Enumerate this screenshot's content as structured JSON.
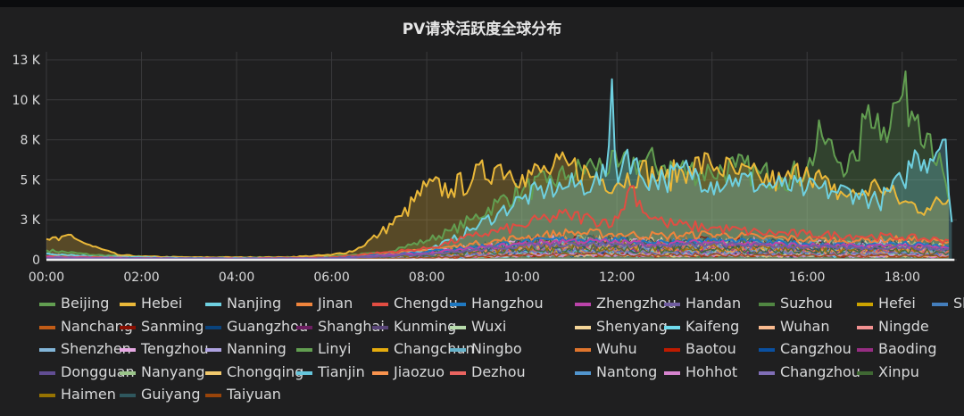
{
  "chart_data": {
    "type": "line",
    "title": "PV请求活跃度全球分布",
    "xlabel": "",
    "ylabel": "",
    "ylim": [
      0,
      13000
    ],
    "yticks": [
      {
        "value": 0,
        "label": "0"
      },
      {
        "value": 2500,
        "label": "3 K"
      },
      {
        "value": 5000,
        "label": "5 K"
      },
      {
        "value": 7500,
        "label": "8 K"
      },
      {
        "value": 10000,
        "label": "10 K"
      },
      {
        "value": 12500,
        "label": "13 K"
      }
    ],
    "xlim": [
      0,
      19.15
    ],
    "xticks": [
      {
        "value": 0,
        "label": "00:00"
      },
      {
        "value": 2,
        "label": "02:00"
      },
      {
        "value": 4,
        "label": "04:00"
      },
      {
        "value": 6,
        "label": "06:00"
      },
      {
        "value": 8,
        "label": "08:00"
      },
      {
        "value": 10,
        "label": "10:00"
      },
      {
        "value": 12,
        "label": "12:00"
      },
      {
        "value": 14,
        "label": "14:00"
      },
      {
        "value": 16,
        "label": "16:00"
      },
      {
        "value": 18,
        "label": "18:00"
      }
    ],
    "grid": true,
    "legend_position": "bottom",
    "series": [
      {
        "name": "Beijing",
        "color": "#629e51",
        "fill": true,
        "x": [
          0,
          1,
          2,
          3,
          4,
          5,
          6,
          7,
          7.5,
          8,
          8.5,
          9,
          9.5,
          10,
          10.5,
          11,
          11.5,
          12,
          12.5,
          13,
          13.5,
          14,
          14.5,
          15,
          15.5,
          16,
          16.3,
          16.6,
          17,
          17.3,
          17.6,
          18,
          18.3,
          18.6,
          19
        ],
        "y": [
          600,
          300,
          200,
          150,
          150,
          150,
          250,
          400,
          800,
          1200,
          1800,
          2600,
          3600,
          4300,
          4800,
          5300,
          5900,
          5800,
          6200,
          5900,
          5600,
          5500,
          5800,
          5400,
          5100,
          5600,
          7800,
          6400,
          5800,
          9800,
          8200,
          10300,
          9200,
          7800,
          3500
        ]
      },
      {
        "name": "Hebei",
        "color": "#eab839",
        "fill": true,
        "x": [
          0,
          0.25,
          0.5,
          0.75,
          1,
          1.5,
          2,
          3,
          4,
          5,
          6,
          6.5,
          7,
          7.5,
          8,
          8.5,
          9,
          9.5,
          10,
          10.5,
          11,
          11.5,
          12,
          12.5,
          13,
          13.5,
          14,
          14.5,
          15,
          15.5,
          16,
          16.5,
          17,
          17.5,
          18,
          18.5,
          19
        ],
        "y": [
          1300,
          1200,
          1600,
          1100,
          800,
          300,
          200,
          150,
          150,
          150,
          300,
          600,
          1600,
          2800,
          4600,
          4400,
          5100,
          5900,
          5300,
          5500,
          5900,
          5200,
          4800,
          5600,
          5000,
          5800,
          6000,
          5400,
          5100,
          4800,
          5800,
          4300,
          4000,
          4700,
          3600,
          3200,
          3800
        ]
      },
      {
        "name": "Nanjing",
        "color": "#6ed0e0",
        "fill": true,
        "x": [
          0,
          1,
          2,
          3,
          4,
          5,
          6,
          7,
          8,
          8.5,
          9,
          9.5,
          10,
          10.5,
          11,
          11.5,
          11.8,
          11.9,
          12,
          12.2,
          12.5,
          13,
          13.5,
          14,
          14.5,
          15,
          15.5,
          16,
          16.5,
          17,
          17.5,
          18,
          18.3,
          18.6,
          18.9,
          19.1
        ],
        "y": [
          400,
          200,
          150,
          100,
          100,
          100,
          150,
          250,
          600,
          1200,
          2000,
          2900,
          3800,
          4400,
          4600,
          4800,
          5200,
          11600,
          4500,
          7000,
          5200,
          5000,
          5600,
          4800,
          5100,
          4700,
          4600,
          4400,
          4300,
          4200,
          3600,
          4900,
          6600,
          6300,
          8100,
          300
        ]
      },
      {
        "name": "Jinan",
        "color": "#ef843c",
        "fill": false,
        "x": [
          0,
          2,
          4,
          6,
          8,
          9,
          10,
          11,
          12,
          13,
          14,
          15,
          16,
          17,
          18,
          19
        ],
        "y": [
          200,
          100,
          80,
          100,
          600,
          1000,
          1400,
          1700,
          1600,
          1500,
          1600,
          1400,
          1300,
          1200,
          1300,
          1100
        ]
      },
      {
        "name": "Chengdu",
        "color": "#e24d42",
        "fill": false,
        "x": [
          0,
          2,
          4,
          6,
          8,
          9,
          10,
          10.5,
          11,
          11.5,
          12,
          12.3,
          12.6,
          13,
          13.5,
          14,
          15,
          16,
          17,
          18,
          19
        ],
        "y": [
          200,
          100,
          80,
          150,
          700,
          1500,
          2100,
          2600,
          2800,
          2500,
          2400,
          4700,
          2900,
          2300,
          2100,
          2000,
          1700,
          1600,
          1500,
          1400,
          1200
        ]
      },
      {
        "name": "Hangzhou",
        "color": "#1f78c1",
        "fill": false,
        "x": [
          0,
          2,
          4,
          6,
          8,
          9,
          10,
          11,
          12,
          13,
          14,
          15,
          16,
          17,
          18,
          19
        ],
        "y": [
          150,
          100,
          80,
          100,
          500,
          800,
          1100,
          1300,
          1200,
          1100,
          1200,
          1100,
          1000,
          900,
          1000,
          800
        ]
      },
      {
        "name": "Zhengzhou",
        "color": "#ba43a9",
        "fill": false,
        "x": [
          0,
          2,
          4,
          6,
          8,
          9,
          10,
          11,
          12,
          13,
          14,
          15,
          16,
          17,
          18,
          19
        ],
        "y": [
          150,
          90,
          70,
          90,
          400,
          700,
          1000,
          1200,
          1100,
          1000,
          1100,
          1000,
          900,
          850,
          900,
          700
        ]
      },
      {
        "name": "Handan",
        "color": "#705da0",
        "fill": false,
        "x": [
          0,
          2,
          4,
          6,
          8,
          9,
          10,
          11,
          12,
          13,
          14,
          15,
          16,
          17,
          18,
          19
        ],
        "y": [
          100,
          80,
          60,
          80,
          350,
          600,
          900,
          1000,
          950,
          900,
          950,
          900,
          800,
          750,
          800,
          650
        ]
      }
    ],
    "legend": [
      {
        "name": "Beijing",
        "color": "#629e51"
      },
      {
        "name": "Hebei",
        "color": "#eab839"
      },
      {
        "name": "Nanjing",
        "color": "#6ed0e0"
      },
      {
        "name": "Jinan",
        "color": "#ef843c"
      },
      {
        "name": "Chengdu",
        "color": "#e24d42"
      },
      {
        "name": "Hangzhou",
        "color": "#1f78c1"
      },
      {
        "name": "Zhengzhou",
        "color": "#ba43a9"
      },
      {
        "name": "Handan",
        "color": "#705da0"
      },
      {
        "name": "Suzhou",
        "color": "#508642"
      },
      {
        "name": "Hefei",
        "color": "#cca300"
      },
      {
        "name": "Shiji",
        "color": "#447ebc"
      },
      {
        "name": "Nanchang",
        "color": "#c15c17"
      },
      {
        "name": "Sanming",
        "color": "#890f02"
      },
      {
        "name": "Guangzhou",
        "color": "#0a437c"
      },
      {
        "name": "Shanghai",
        "color": "#6d1f62"
      },
      {
        "name": "Kunming",
        "color": "#584477"
      },
      {
        "name": "Wuxi",
        "color": "#b7dbab"
      },
      {
        "name": "Shenyang",
        "color": "#f4d598"
      },
      {
        "name": "Kaifeng",
        "color": "#70dbed"
      },
      {
        "name": "Wuhan",
        "color": "#f9ba8f"
      },
      {
        "name": "Ningde",
        "color": "#f29191"
      },
      {
        "name": "Shenzhen",
        "color": "#82b5d8"
      },
      {
        "name": "Tengzhou",
        "color": "#e5a8e2"
      },
      {
        "name": "Nanning",
        "color": "#aea2e0"
      },
      {
        "name": "Linyi",
        "color": "#629e51"
      },
      {
        "name": "Changchun",
        "color": "#e5ac0e"
      },
      {
        "name": "Ningbo",
        "color": "#64b0c8"
      },
      {
        "name": "Wuhu",
        "color": "#e0752d"
      },
      {
        "name": "Baotou",
        "color": "#bf1b00"
      },
      {
        "name": "Cangzhou",
        "color": "#0a50a1"
      },
      {
        "name": "Baoding",
        "color": "#962d82"
      },
      {
        "name": "Dongguan",
        "color": "#614d93"
      },
      {
        "name": "Nanyang",
        "color": "#9ac48a"
      },
      {
        "name": "Chongqing",
        "color": "#f2c96d"
      },
      {
        "name": "Tianjin",
        "color": "#65c5db"
      },
      {
        "name": "Jiaozuo",
        "color": "#f9934e"
      },
      {
        "name": "Dezhou",
        "color": "#ea6460"
      },
      {
        "name": "Nantong",
        "color": "#5195ce"
      },
      {
        "name": "Hohhot",
        "color": "#d683ce"
      },
      {
        "name": "Changzhou",
        "color": "#806eb7"
      },
      {
        "name": "Xinpu",
        "color": "#3f6833"
      },
      {
        "name": "Haimen",
        "color": "#967302"
      },
      {
        "name": "Guiyang",
        "color": "#2f575e"
      },
      {
        "name": "Taiyuan",
        "color": "#99440a"
      }
    ]
  }
}
